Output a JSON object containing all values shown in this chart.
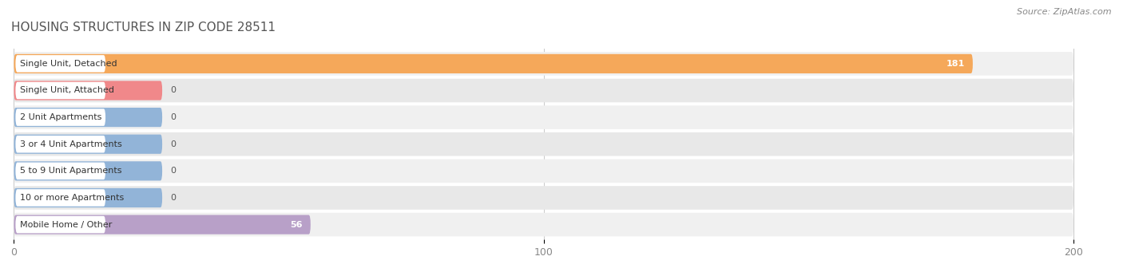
{
  "title": "HOUSING STRUCTURES IN ZIP CODE 28511",
  "source": "Source: ZipAtlas.com",
  "categories": [
    "Single Unit, Detached",
    "Single Unit, Attached",
    "2 Unit Apartments",
    "3 or 4 Unit Apartments",
    "5 to 9 Unit Apartments",
    "10 or more Apartments",
    "Mobile Home / Other"
  ],
  "values": [
    181,
    0,
    0,
    0,
    0,
    0,
    56
  ],
  "bar_colors": [
    "#f5a85a",
    "#f0888a",
    "#92b4d8",
    "#92b4d8",
    "#92b4d8",
    "#92b4d8",
    "#b8a0c8"
  ],
  "row_bg_color_odd": "#f0f0f0",
  "row_bg_color_even": "#e8e8e8",
  "label_bg_color": "#ffffff",
  "xlim": [
    0,
    200
  ],
  "xticks": [
    0,
    100,
    200
  ],
  "title_fontsize": 11,
  "source_fontsize": 8,
  "tick_fontsize": 9,
  "label_fontsize": 8,
  "value_label_color_on_bar": "#ffffff",
  "value_label_color_off_bar": "#555555",
  "grid_color": "#cccccc",
  "tick_color": "#888888"
}
